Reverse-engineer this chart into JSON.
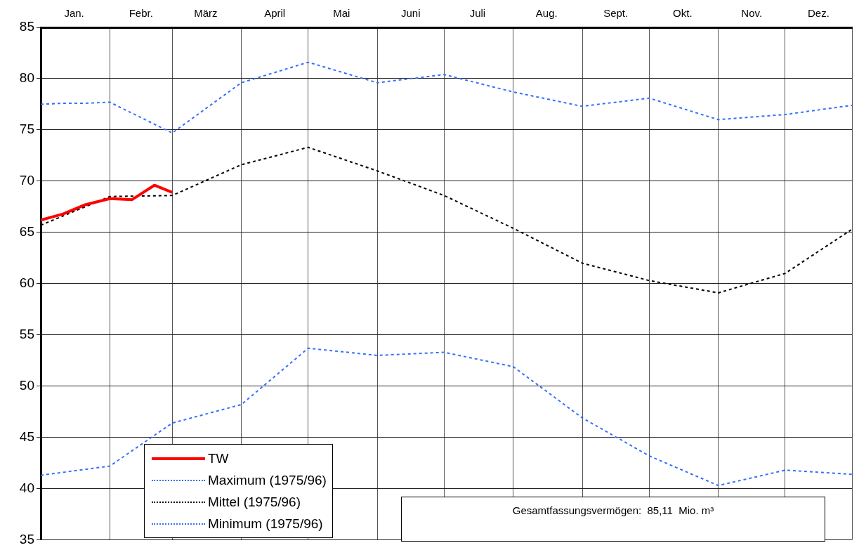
{
  "chart_data": {
    "type": "line",
    "xlim": [
      "--01-01",
      "--12-31"
    ],
    "xticks": [
      {
        "value": "--01-01",
        "label": null
      },
      {
        "value": "--01-16",
        "label": "Jan."
      },
      {
        "value": "--02-01",
        "label": null
      },
      {
        "value": "--02-15",
        "label": "Febr."
      },
      {
        "value": "--03-01",
        "label": null
      },
      {
        "value": "--03-16",
        "label": "März"
      },
      {
        "value": "--04-01",
        "label": null
      },
      {
        "value": "--04-16",
        "label": "April"
      },
      {
        "value": "--05-01",
        "label": null
      },
      {
        "value": "--05-16",
        "label": "Mai"
      },
      {
        "value": "--06-01",
        "label": null
      },
      {
        "value": "--06-16",
        "label": "Juni"
      },
      {
        "value": "--07-01",
        "label": null
      },
      {
        "value": "--07-16",
        "label": "Juli"
      },
      {
        "value": "--08-01",
        "label": null
      },
      {
        "value": "--08-16",
        "label": "Aug."
      },
      {
        "value": "--09-01",
        "label": null
      },
      {
        "value": "--09-16",
        "label": "Sept."
      },
      {
        "value": "--10-01",
        "label": null
      },
      {
        "value": "--10-16",
        "label": "Okt."
      },
      {
        "value": "--11-01",
        "label": null
      },
      {
        "value": "--11-16",
        "label": "Nov."
      },
      {
        "value": "--12-01",
        "label": null
      },
      {
        "value": "--12-16",
        "label": "Dez."
      },
      {
        "value": "--12-31",
        "label": null
      }
    ],
    "ylim": [
      35,
      85
    ],
    "yticks": [
      35,
      40,
      45,
      50,
      55,
      60,
      65,
      70,
      75,
      80,
      85
    ],
    "grid": true,
    "legend": "bottom left",
    "marker": "none",
    "series": [
      {
        "name": "TW",
        "color": "#ff0000",
        "line_style": "solid",
        "x": [
          "--01-01",
          "--01-11",
          "--01-21",
          "--02-01",
          "--02-11",
          "--02-21",
          "--03-01"
        ],
        "values": [
          66.2,
          66.8,
          67.7,
          68.3,
          68.2,
          69.6,
          68.9
        ]
      },
      {
        "name": "Maximum (1975/96)",
        "color": "#3370ff",
        "line_style": "dotted",
        "x": [
          "--01-01",
          "--01-11",
          "--01-21",
          "--02-01",
          "--03-01",
          "--04-01",
          "--05-01",
          "--06-01",
          "--07-01",
          "--08-01",
          "--09-01",
          "--10-01",
          "--11-01",
          "--12-01",
          "--12-31"
        ],
        "values": [
          77.5,
          77.6,
          77.6,
          77.7,
          74.7,
          79.6,
          81.6,
          79.6,
          80.4,
          78.7,
          77.3,
          78.1,
          76.0,
          76.5,
          77.4
        ]
      },
      {
        "name": "Mittel (1975/96)",
        "color": "#000000",
        "line_style": "dotted",
        "x": [
          "--01-01",
          "--02-01",
          "--03-01",
          "--04-01",
          "--05-01",
          "--06-01",
          "--07-01",
          "--08-01",
          "--09-01",
          "--10-01",
          "--11-01",
          "--12-01",
          "--12-31"
        ],
        "values": [
          65.7,
          68.5,
          68.6,
          71.6,
          73.3,
          71.0,
          68.6,
          65.4,
          62.0,
          60.3,
          59.1,
          61.0,
          65.3
        ]
      },
      {
        "name": "Minimum (1975/96)",
        "color": "#3370ff",
        "line_style": "dotted",
        "x": [
          "--01-01",
          "--02-01",
          "--03-01",
          "--04-01",
          "--05-01",
          "--06-01",
          "--07-01",
          "--08-01",
          "--09-01",
          "--10-01",
          "--11-01",
          "--12-01",
          "--12-31"
        ],
        "values": [
          41.3,
          42.2,
          46.4,
          48.2,
          53.7,
          53.0,
          53.3,
          51.9,
          46.9,
          43.2,
          40.3,
          41.8,
          41.4
        ]
      }
    ],
    "annotations": [
      "Gesamtfassungsvermögen:  85,11  Mio. m³"
    ]
  }
}
